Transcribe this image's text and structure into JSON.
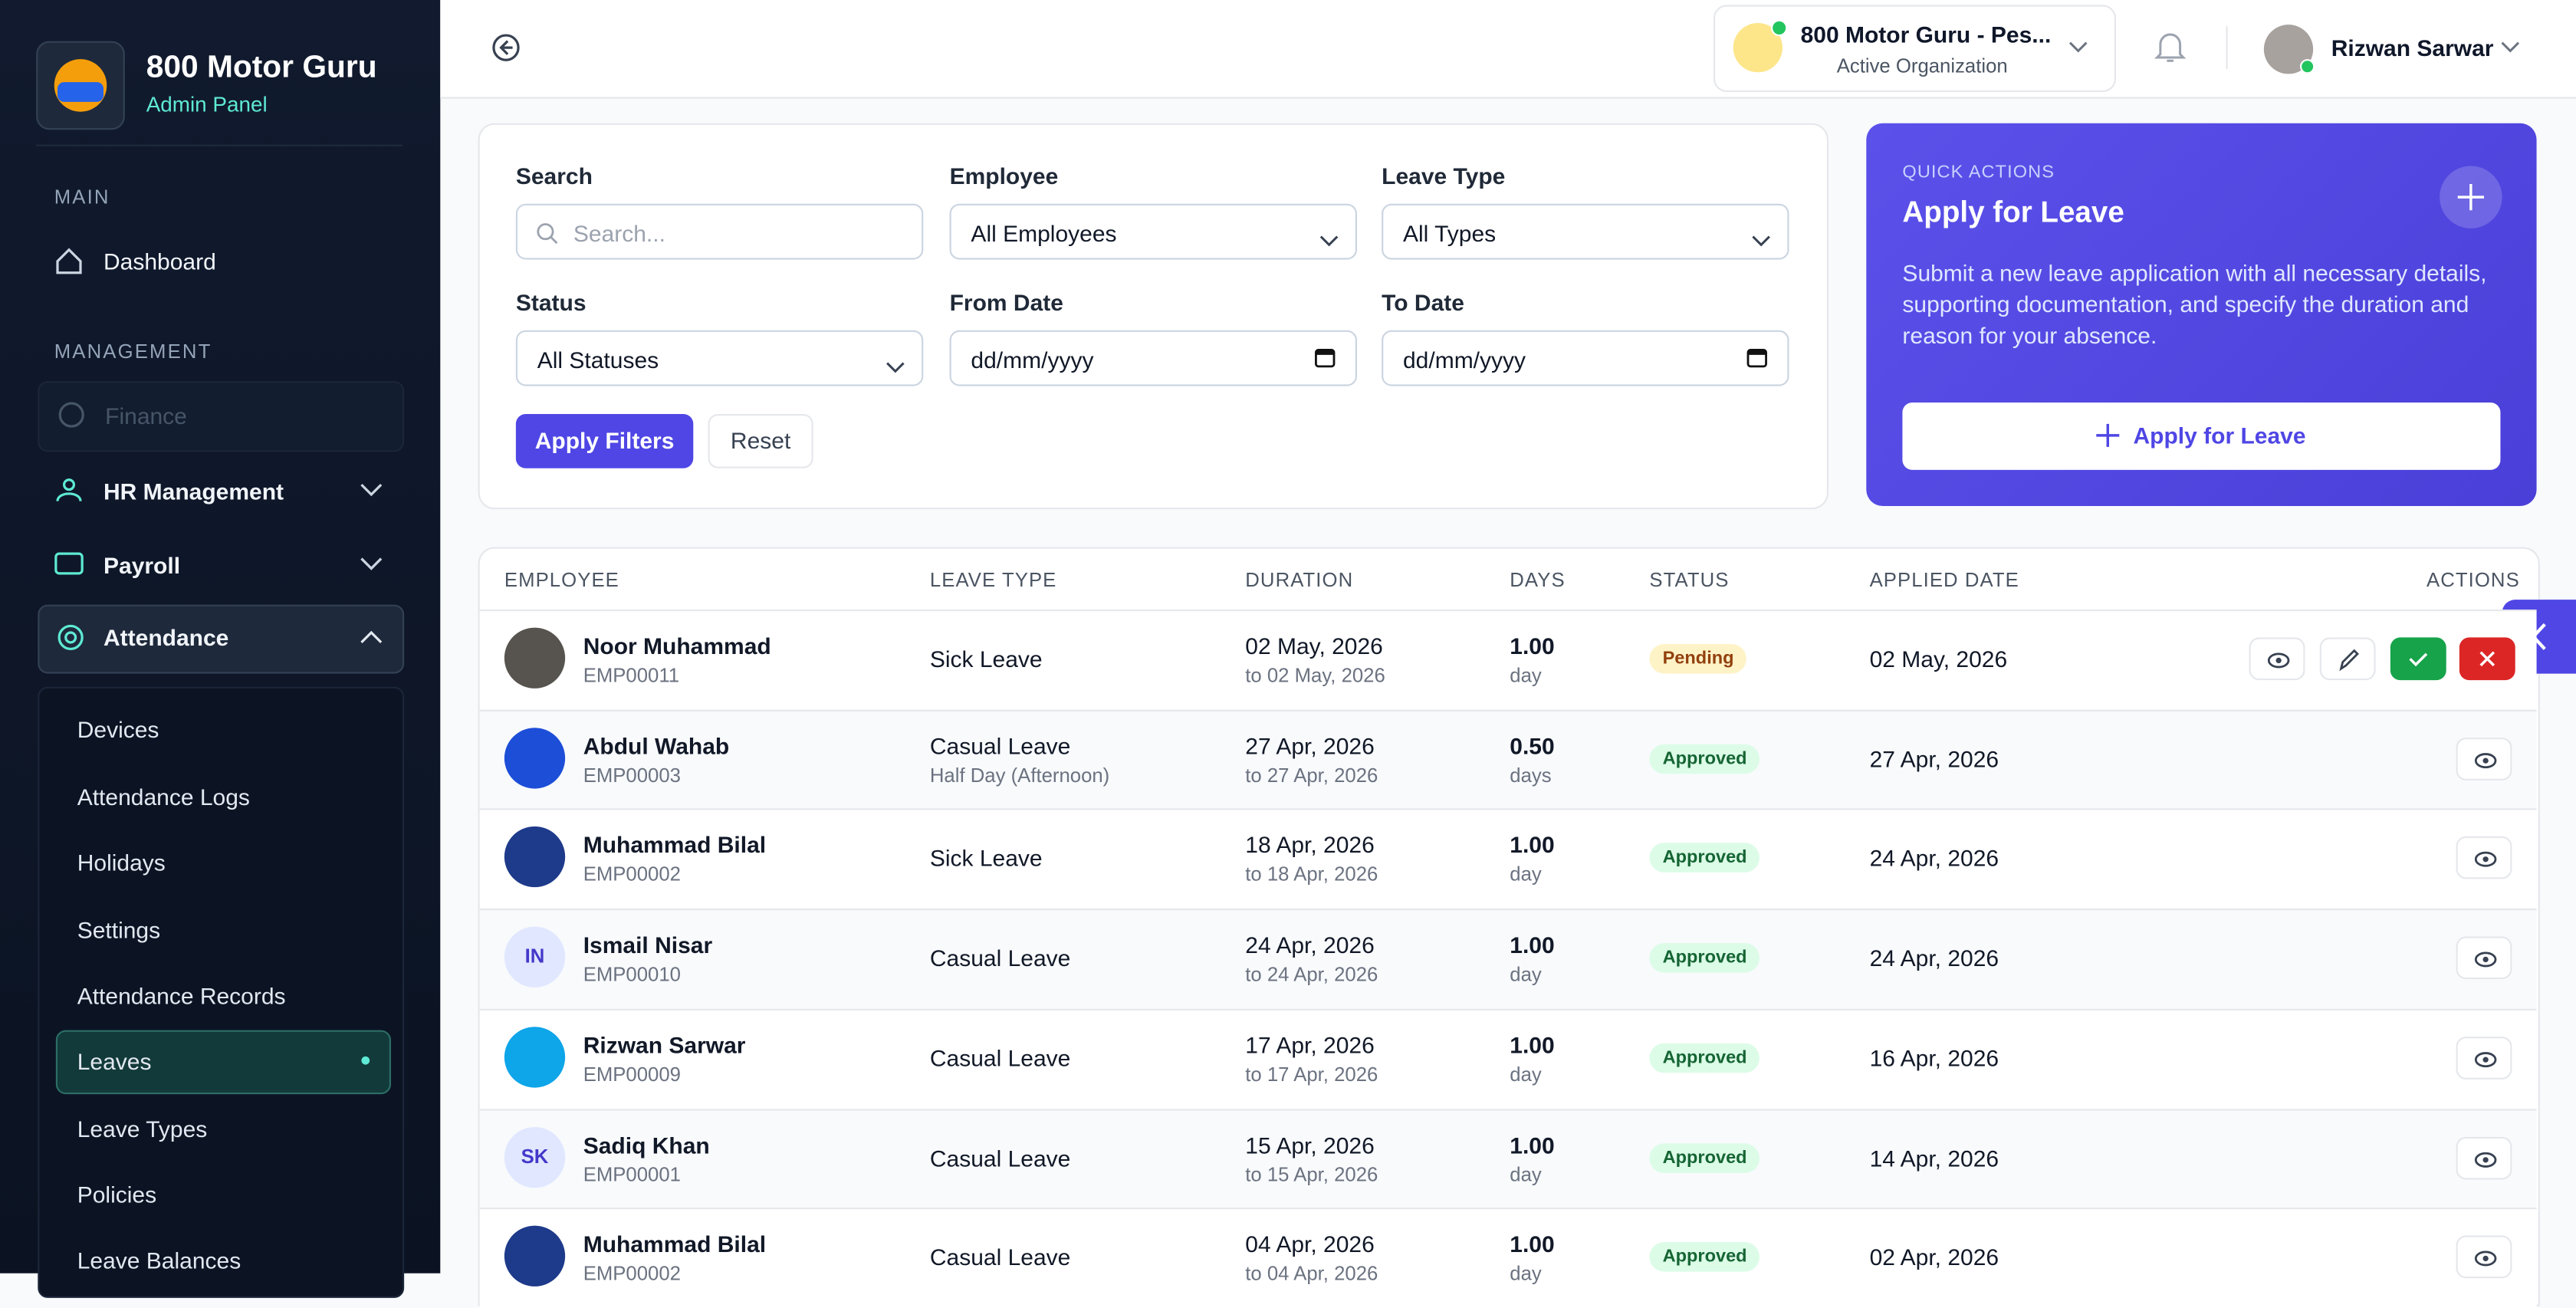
{
  "sidebar": {
    "brand": "800 Motor Guru",
    "subtitle": "Admin Panel",
    "main_label": "MAIN",
    "dashboard": "Dashboard",
    "management_label": "MANAGEMENT",
    "finance": "Finance",
    "hr": "HR Management",
    "payroll": "Payroll",
    "attendance": "Attendance",
    "submenu": [
      "Devices",
      "Attendance Logs",
      "Holidays",
      "Settings",
      "Attendance Records",
      "Leaves",
      "Leave Types",
      "Policies",
      "Leave Balances"
    ]
  },
  "header": {
    "org_name": "800 Motor Guru - Pes...",
    "org_status": "Active Organization",
    "user": "Rizwan Sarwar"
  },
  "filters": {
    "search_label": "Search",
    "search_placeholder": "Search...",
    "employee_label": "Employee",
    "employee_value": "All Employees",
    "leave_type_label": "Leave Type",
    "leave_type_value": "All Types",
    "status_label": "Status",
    "status_value": "All Statuses",
    "from_label": "From Date",
    "from_value": "dd/mm/yyyy",
    "to_label": "To Date",
    "to_value": "dd/mm/yyyy",
    "apply": "Apply Filters",
    "reset": "Reset"
  },
  "quick_actions": {
    "eyebrow": "QUICK ACTIONS",
    "title": "Apply for Leave",
    "description": "Submit a new leave application with all necessary details, supporting documentation, and specify the duration and reason for your absence.",
    "button": "Apply for Leave"
  },
  "table": {
    "columns": [
      "EMPLOYEE",
      "LEAVE TYPE",
      "DURATION",
      "DAYS",
      "STATUS",
      "APPLIED DATE",
      "ACTIONS"
    ],
    "rows": [
      {
        "name": "Noor Muhammad",
        "id": "EMP00011",
        "leave_type": "Sick Leave",
        "from": "02 May, 2026",
        "to": "to 02 May, 2026",
        "days": "1.00",
        "unit": "day",
        "status": "Pending",
        "applied": "02 May, 2026"
      },
      {
        "name": "Abdul Wahab",
        "id": "EMP00003",
        "leave_type": "Casual Leave",
        "note": "Half Day (Afternoon)",
        "from": "27 Apr, 2026",
        "to": "to 27 Apr, 2026",
        "days": "0.50",
        "unit": "days",
        "status": "Approved",
        "applied": "27 Apr, 2026"
      },
      {
        "name": "Muhammad Bilal",
        "id": "EMP00002",
        "leave_type": "Sick Leave",
        "from": "18 Apr, 2026",
        "to": "to 18 Apr, 2026",
        "days": "1.00",
        "unit": "day",
        "status": "Approved",
        "applied": "24 Apr, 2026"
      },
      {
        "initials": "IN",
        "name": "Ismail Nisar",
        "id": "EMP00010",
        "leave_type": "Casual Leave",
        "from": "24 Apr, 2026",
        "to": "to 24 Apr, 2026",
        "days": "1.00",
        "unit": "day",
        "status": "Approved",
        "applied": "24 Apr, 2026"
      },
      {
        "name": "Rizwan Sarwar",
        "id": "EMP00009",
        "leave_type": "Casual Leave",
        "from": "17 Apr, 2026",
        "to": "to 17 Apr, 2026",
        "days": "1.00",
        "unit": "day",
        "status": "Approved",
        "applied": "16 Apr, 2026"
      },
      {
        "initials": "SK",
        "name": "Sadiq Khan",
        "id": "EMP00001",
        "leave_type": "Casual Leave",
        "from": "15 Apr, 2026",
        "to": "to 15 Apr, 2026",
        "days": "1.00",
        "unit": "day",
        "status": "Approved",
        "applied": "14 Apr, 2026"
      },
      {
        "name": "Muhammad Bilal",
        "id": "EMP00002",
        "leave_type": "Casual Leave",
        "from": "04 Apr, 2026",
        "to": "to 04 Apr, 2026",
        "days": "1.00",
        "unit": "day",
        "status": "Approved",
        "applied": "02 Apr, 2026"
      }
    ]
  }
}
